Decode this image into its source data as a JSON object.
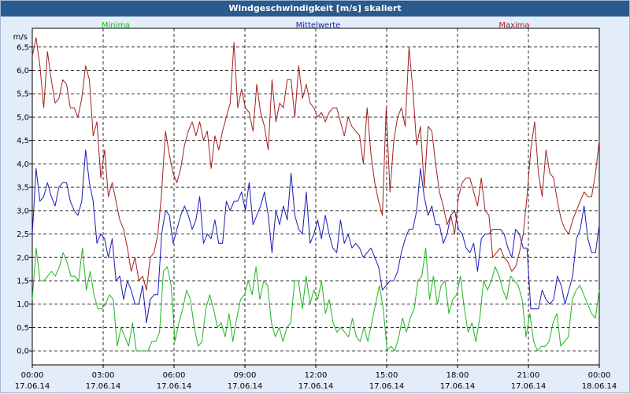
{
  "chart_data": {
    "type": "line",
    "title": "Windgeschwindigkeit [m/s] skaliert",
    "ylabel": "m/s",
    "ylim": [
      -0.3,
      6.9
    ],
    "yticks": [
      "0,0",
      "0,5",
      "1,0",
      "1,5",
      "2,0",
      "2,5",
      "3,0",
      "3,5",
      "4,0",
      "4,5",
      "5,0",
      "5,5",
      "6,0",
      "6,5"
    ],
    "xticks": [
      {
        "time": "00:00",
        "date": "17.06.14"
      },
      {
        "time": "03:00",
        "date": "17.06.14"
      },
      {
        "time": "06:00",
        "date": "17.06.14"
      },
      {
        "time": "09:00",
        "date": "17.06.14"
      },
      {
        "time": "12:00",
        "date": "17.06.14"
      },
      {
        "time": "15:00",
        "date": "17.06.14"
      },
      {
        "time": "18:00",
        "date": "17.06.14"
      },
      {
        "time": "21:00",
        "date": "17.06.14"
      },
      {
        "time": "00:00",
        "date": "18.06.14"
      }
    ],
    "x_range_hours": [
      0,
      24
    ],
    "series": [
      {
        "name": "Minima",
        "color": "#1fb51f",
        "values": [
          1.1,
          2.2,
          1.5,
          1.5,
          1.6,
          1.7,
          1.6,
          1.8,
          2.1,
          1.9,
          1.6,
          1.6,
          1.5,
          2.2,
          1.3,
          1.7,
          1.2,
          0.9,
          0.9,
          1.0,
          1.2,
          1.1,
          0.1,
          0.5,
          0.3,
          0.1,
          0.6,
          0.0,
          0.0,
          0.0,
          0.0,
          0.2,
          0.2,
          0.4,
          1.7,
          1.8,
          1.4,
          0.2,
          0.6,
          0.9,
          1.3,
          1.1,
          0.5,
          0.1,
          0.2,
          0.9,
          1.2,
          0.9,
          0.5,
          0.6,
          0.3,
          0.8,
          0.2,
          0.7,
          1.1,
          1.2,
          1.5,
          1.2,
          1.8,
          1.1,
          1.5,
          1.4,
          0.6,
          0.3,
          0.5,
          0.2,
          0.5,
          0.6,
          1.5,
          1.5,
          0.9,
          1.6,
          1.0,
          1.3,
          1.1,
          1.5,
          0.8,
          1.1,
          0.6,
          0.4,
          0.5,
          0.4,
          0.3,
          0.7,
          0.3,
          0.2,
          0.5,
          0.2,
          0.6,
          1.0,
          1.4,
          0.9,
          0.0,
          0.1,
          0.0,
          0.3,
          0.7,
          0.4,
          0.7,
          0.9,
          1.5,
          1.6,
          2.2,
          1.1,
          1.6,
          1.0,
          1.4,
          1.5,
          0.8,
          1.1,
          1.2,
          1.6,
          0.9,
          0.4,
          0.6,
          0.2,
          0.7,
          1.5,
          1.3,
          1.5,
          1.8,
          1.6,
          1.3,
          1.1,
          1.6,
          1.5,
          1.4,
          1.1,
          0.3,
          0.8,
          0.2,
          0.0,
          0.1,
          0.1,
          0.2,
          0.6,
          0.8,
          0.1,
          0.2,
          0.3,
          1.1,
          1.3,
          1.4,
          1.2,
          1.0,
          0.8,
          0.7,
          1.3
        ]
      },
      {
        "name": "Mittelwerte",
        "color": "#1a1ab8",
        "values": [
          2.5,
          3.9,
          3.2,
          3.3,
          3.6,
          3.3,
          3.1,
          3.5,
          3.6,
          3.6,
          3.2,
          3.0,
          2.9,
          3.2,
          4.3,
          3.6,
          3.2,
          2.3,
          2.5,
          2.4,
          2.0,
          2.4,
          1.5,
          1.6,
          1.1,
          1.5,
          1.3,
          1.0,
          1.0,
          1.4,
          0.6,
          1.1,
          1.2,
          1.2,
          2.5,
          3.0,
          2.9,
          2.3,
          2.6,
          2.9,
          3.1,
          2.9,
          2.6,
          2.8,
          3.3,
          2.3,
          2.5,
          2.4,
          2.8,
          2.3,
          2.3,
          3.2,
          3.0,
          3.2,
          3.2,
          3.4,
          3.0,
          3.6,
          2.7,
          2.9,
          3.1,
          3.4,
          2.9,
          2.1,
          3.0,
          2.7,
          3.1,
          2.8,
          3.8,
          2.9,
          2.6,
          2.5,
          3.4,
          2.3,
          2.5,
          2.8,
          2.4,
          2.9,
          2.5,
          2.2,
          2.1,
          2.8,
          2.3,
          2.5,
          2.2,
          2.3,
          2.2,
          2.0,
          2.1,
          2.2,
          2.0,
          1.8,
          1.3,
          1.4,
          1.5,
          1.5,
          1.7,
          2.1,
          2.4,
          2.6,
          2.6,
          3.0,
          3.9,
          3.3,
          2.9,
          3.1,
          2.7,
          2.7,
          2.3,
          2.5,
          2.9,
          3.0,
          2.6,
          2.5,
          2.2,
          2.1,
          2.3,
          1.7,
          2.4,
          2.5,
          2.5,
          2.6,
          2.6,
          2.6,
          2.5,
          2.2,
          2.0,
          2.6,
          2.5,
          2.2,
          2.2,
          0.9,
          0.9,
          0.9,
          1.3,
          1.1,
          1.0,
          1.1,
          1.6,
          1.4,
          1.0,
          1.3,
          1.6,
          2.4,
          2.6,
          3.1,
          2.4,
          2.1,
          2.1,
          2.7
        ]
      },
      {
        "name": "Maxima",
        "color": "#a31f1f",
        "values": [
          6.3,
          6.7,
          6.1,
          5.2,
          6.4,
          5.8,
          5.3,
          5.4,
          5.8,
          5.7,
          5.2,
          5.2,
          5.0,
          5.4,
          6.1,
          5.8,
          4.6,
          4.9,
          3.7,
          4.3,
          3.3,
          3.6,
          3.2,
          2.8,
          2.6,
          2.2,
          1.7,
          2.0,
          1.5,
          1.6,
          1.3,
          2.0,
          2.1,
          2.5,
          3.4,
          4.7,
          4.2,
          3.8,
          3.6,
          3.9,
          4.4,
          4.7,
          4.9,
          4.6,
          4.9,
          4.5,
          4.7,
          3.9,
          4.6,
          4.3,
          4.7,
          5.0,
          5.3,
          6.6,
          5.2,
          5.6,
          5.2,
          5.1,
          4.7,
          5.7,
          5.1,
          4.8,
          4.3,
          5.8,
          4.9,
          5.3,
          5.2,
          5.8,
          5.8,
          5.0,
          6.1,
          5.4,
          5.7,
          5.3,
          5.2,
          5.0,
          5.1,
          4.9,
          5.1,
          5.2,
          5.2,
          4.9,
          4.6,
          5.0,
          4.8,
          4.7,
          4.6,
          4.0,
          5.2,
          4.2,
          3.6,
          3.2,
          2.9,
          5.2,
          3.4,
          4.5,
          5.0,
          5.2,
          4.8,
          6.5,
          5.6,
          4.4,
          4.8,
          3.5,
          4.8,
          4.7,
          4.0,
          3.4,
          3.1,
          2.7,
          2.9,
          2.5,
          3.3,
          3.6,
          3.7,
          3.7,
          3.4,
          3.1,
          3.7,
          3.0,
          2.9,
          2.0,
          2.1,
          2.2,
          2.0,
          1.9,
          1.7,
          1.8,
          2.1,
          2.5,
          3.3,
          4.3,
          4.9,
          3.8,
          3.3,
          4.3,
          3.8,
          3.7,
          3.2,
          2.8,
          2.6,
          2.5,
          2.8,
          3.0,
          3.2,
          3.4,
          3.3,
          3.3,
          3.8,
          4.5
        ]
      }
    ]
  }
}
